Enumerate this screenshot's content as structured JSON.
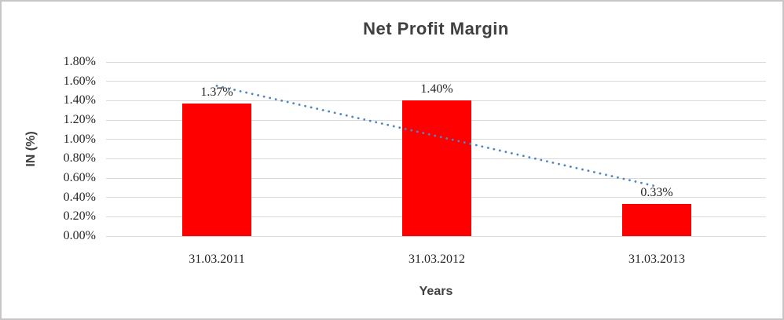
{
  "chart_data": {
    "type": "bar",
    "title": "Net Profit Margin",
    "xlabel": "Years",
    "ylabel": "IN (%)",
    "categories": [
      "31.03.2011",
      "31.03.2012",
      "31.03.2013"
    ],
    "values": [
      1.37,
      1.4,
      0.33
    ],
    "data_labels": [
      "1.37%",
      "1.40%",
      "0.33%"
    ],
    "series": [
      {
        "name": "Net Profit Margin",
        "values": [
          1.37,
          1.4,
          0.33
        ]
      }
    ],
    "y_ticks": [
      "1.80%",
      "1.60%",
      "1.40%",
      "1.20%",
      "1.00%",
      "0.80%",
      "0.60%",
      "0.40%",
      "0.20%",
      "0.00%"
    ],
    "ylim": [
      0,
      1.8
    ],
    "y_tick_step": 0.2,
    "unit": "%",
    "grid": true,
    "legend": false,
    "trendline": {
      "type": "linear",
      "style": "dotted"
    },
    "colors": {
      "bar": "#ff0000",
      "trendline": "#4f86c6",
      "gridline": "#d9d9d9",
      "title_text": "#404040",
      "tick_text": "#262626"
    }
  }
}
